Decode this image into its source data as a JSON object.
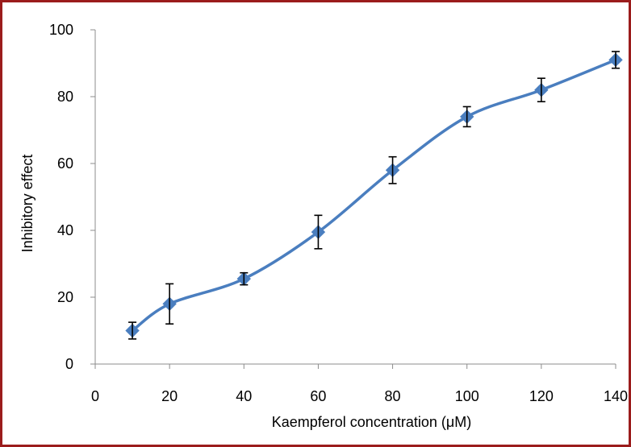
{
  "chart_data": {
    "type": "line",
    "title": "",
    "xlabel": "Kaempferol concentration (μM)",
    "ylabel": "Inhibitory effect",
    "xlim": [
      0,
      140
    ],
    "ylim": [
      0,
      100
    ],
    "x_ticks": [
      0,
      20,
      40,
      60,
      80,
      100,
      120,
      140
    ],
    "y_ticks": [
      0,
      20,
      40,
      60,
      80,
      100
    ],
    "grid": false,
    "legend": "none",
    "smooth": true,
    "series": [
      {
        "color": "#4a7ebf",
        "marker": "diamond",
        "points": [
          {
            "x": 10,
            "y": 10,
            "err": 2.5
          },
          {
            "x": 20,
            "y": 18,
            "err": 6
          },
          {
            "x": 40,
            "y": 25.5,
            "err": 1.8
          },
          {
            "x": 60,
            "y": 39.5,
            "err": 5
          },
          {
            "x": 80,
            "y": 58,
            "err": 4
          },
          {
            "x": 100,
            "y": 74,
            "err": 3
          },
          {
            "x": 120,
            "y": 82,
            "err": 3.5
          },
          {
            "x": 140,
            "y": 91,
            "err": 2.5
          }
        ]
      }
    ]
  }
}
